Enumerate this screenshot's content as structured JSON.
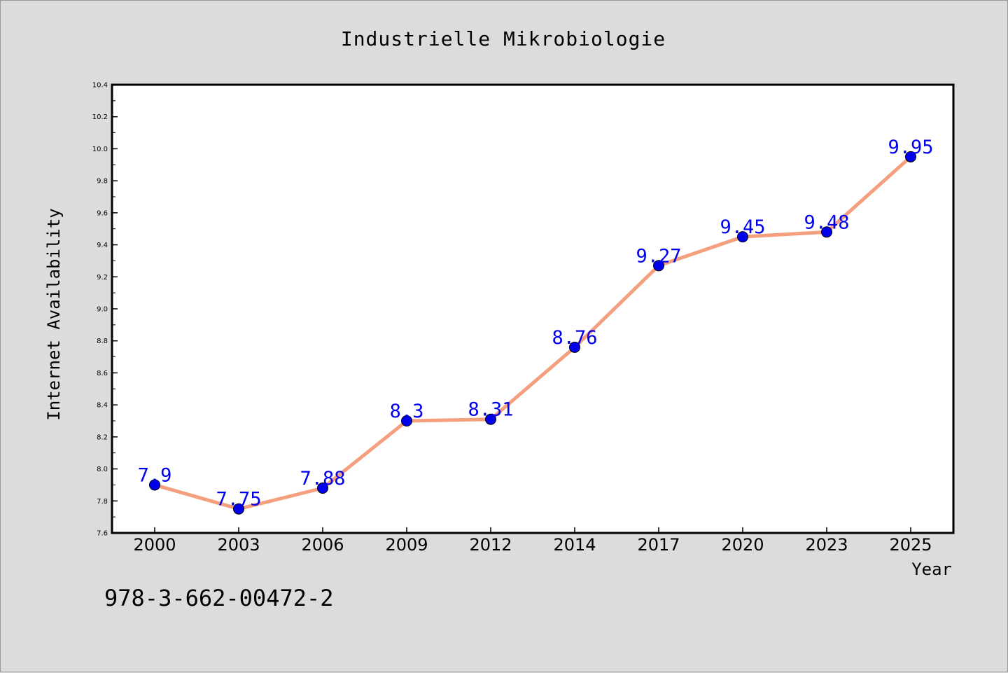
{
  "chart_data": {
    "type": "line",
    "title": "Industrielle Mikrobiologie",
    "xlabel": "Year",
    "ylabel": "Internet Availability",
    "categories": [
      "2000",
      "2003",
      "2006",
      "2009",
      "2012",
      "2014",
      "2017",
      "2020",
      "2023",
      "2025"
    ],
    "series": [
      {
        "values": [
          7.9,
          7.75,
          7.88,
          8.3,
          8.31,
          8.76,
          9.27,
          9.45,
          9.48,
          9.95
        ],
        "data_labels": [
          "7.9",
          "7.75",
          "7.88",
          "8.3",
          "8.31",
          "8.76",
          "9.27",
          "9.45",
          "9.48",
          "9.95"
        ],
        "line_color": "#f4a07f",
        "marker_color": "#0000ee",
        "label_color": "#0000ee"
      }
    ],
    "ylim": [
      7.6,
      10.4
    ],
    "yticks": [
      "7.6",
      "7.8",
      "8.0",
      "8.2",
      "8.4",
      "8.6",
      "8.8",
      "9.0",
      "9.2",
      "9.4",
      "9.6",
      "9.8",
      "10.0",
      "10.2",
      "10.4"
    ],
    "grid": false,
    "legend": "none"
  },
  "footer": {
    "isbn": "978-3-662-00472-2"
  },
  "colors": {
    "background": "#dcdcdc",
    "plot_background": "#ffffff"
  }
}
